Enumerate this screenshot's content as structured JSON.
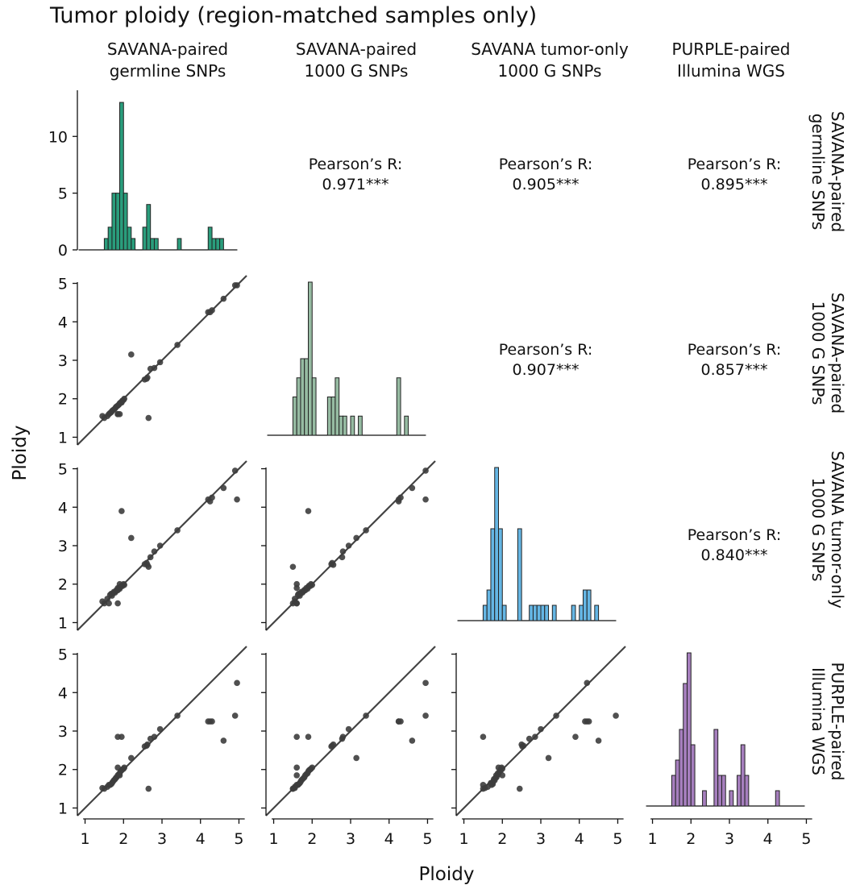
{
  "chart_data": {
    "type": "pairplot",
    "title": "Tumor ploidy (region-matched samples only)",
    "xlabel": "Ploidy",
    "ylabel": "Ploidy",
    "variables": [
      {
        "name": "SAVANA-paired germline SNPs",
        "col_label": [
          "SAVANA-paired",
          "germline SNPs"
        ],
        "row_label": [
          "SAVANA-paired",
          "germline SNPs"
        ],
        "color": "#2a9d7c"
      },
      {
        "name": "SAVANA-paired 1000 G SNPs",
        "col_label": [
          "SAVANA-paired",
          "1000 G SNPs"
        ],
        "row_label": [
          "SAVANA-paired",
          "1000 G SNPs"
        ],
        "color": "#96bba2"
      },
      {
        "name": "SAVANA tumor-only 1000 G SNPs",
        "col_label": [
          "SAVANA tumor-only",
          "1000 G SNPs"
        ],
        "row_label": [
          "SAVANA tumor-only",
          "1000 G SNPs"
        ],
        "color": "#65b6e4"
      },
      {
        "name": "PURPLE-paired Illumina WGS",
        "col_label": [
          "PURPLE-paired",
          "Illumina WGS"
        ],
        "row_label": [
          "PURPLE-paired",
          "Illumina WGS"
        ],
        "color": "#a67fbe"
      }
    ],
    "axis_range": [
      0.8,
      5.2
    ],
    "ticks": [
      1,
      2,
      3,
      4,
      5
    ],
    "count_axis": {
      "range": [
        0,
        13.5
      ],
      "ticks": [
        0,
        5,
        10
      ]
    },
    "histograms": [
      {
        "bin_starts": [
          1.5,
          1.6,
          1.7,
          1.8,
          1.9,
          2.0,
          2.1,
          2.2,
          2.5,
          2.6,
          2.7,
          2.8,
          3.4,
          4.2,
          4.3,
          4.4,
          4.5
        ],
        "counts": [
          1,
          2,
          5,
          5,
          13,
          5,
          2,
          1,
          2,
          4,
          1,
          1,
          1,
          2,
          1,
          1,
          1
        ],
        "bin_width": 0.1
      },
      {
        "bin_starts": [
          1.5,
          1.6,
          1.7,
          1.8,
          1.9,
          2.0,
          2.4,
          2.5,
          2.6,
          2.7,
          2.8,
          3.0,
          3.2,
          4.2,
          4.4
        ],
        "counts": [
          2,
          3,
          4,
          4,
          8,
          3,
          2,
          2,
          3,
          1,
          1,
          1,
          1,
          3,
          1
        ],
        "bin_width": 0.1
      },
      {
        "bin_starts": [
          1.5,
          1.6,
          1.7,
          1.8,
          1.9,
          2.0,
          2.4,
          2.7,
          2.8,
          2.9,
          3.0,
          3.1,
          3.3,
          3.8,
          4.0,
          4.1,
          4.2,
          4.4
        ],
        "counts": [
          1,
          2,
          6,
          10,
          6,
          1,
          6,
          1,
          1,
          1,
          1,
          1,
          1,
          1,
          1,
          2,
          2,
          1
        ],
        "bin_width": 0.1
      },
      {
        "bin_starts": [
          1.5,
          1.6,
          1.7,
          1.8,
          1.9,
          2.0,
          2.3,
          2.6,
          2.7,
          2.8,
          3.0,
          3.2,
          3.3,
          3.4,
          4.2
        ],
        "counts": [
          2,
          3,
          5,
          8,
          10,
          4,
          1,
          5,
          2,
          2,
          1,
          2,
          4,
          2,
          1
        ],
        "bin_width": 0.1
      }
    ],
    "correlations": [
      {
        "row": 0,
        "col": 1,
        "label": "Pearson’s R:",
        "value": "0.971***"
      },
      {
        "row": 0,
        "col": 2,
        "label": "Pearson’s R:",
        "value": "0.905***"
      },
      {
        "row": 0,
        "col": 3,
        "label": "Pearson’s R:",
        "value": "0.895***"
      },
      {
        "row": 1,
        "col": 2,
        "label": "Pearson’s R:",
        "value": "0.907***"
      },
      {
        "row": 1,
        "col": 3,
        "label": "Pearson’s R:",
        "value": "0.857***"
      },
      {
        "row": 2,
        "col": 3,
        "label": "Pearson’s R:",
        "value": "0.840***"
      }
    ],
    "samples": [
      [
        1.5,
        1.5,
        1.5,
        1.5
      ],
      [
        1.58,
        1.55,
        1.62,
        1.55
      ],
      [
        1.62,
        1.6,
        1.5,
        1.6
      ],
      [
        1.65,
        1.63,
        1.72,
        1.6
      ],
      [
        1.68,
        1.65,
        1.75,
        1.62
      ],
      [
        1.7,
        1.68,
        1.7,
        1.65
      ],
      [
        1.72,
        1.7,
        1.76,
        1.68
      ],
      [
        1.75,
        1.72,
        1.8,
        1.72
      ],
      [
        1.78,
        1.75,
        1.78,
        1.75
      ],
      [
        1.8,
        1.78,
        1.82,
        1.78
      ],
      [
        1.82,
        1.8,
        1.85,
        1.8
      ],
      [
        1.85,
        1.82,
        1.84,
        1.85
      ],
      [
        1.88,
        1.85,
        1.9,
        1.88
      ],
      [
        1.9,
        1.88,
        1.88,
        1.9
      ],
      [
        1.92,
        1.9,
        1.93,
        1.95
      ],
      [
        1.95,
        1.92,
        1.96,
        1.98
      ],
      [
        1.97,
        1.95,
        1.95,
        2.0
      ],
      [
        2.0,
        1.97,
        2.0,
        2.02
      ],
      [
        2.02,
        2.0,
        1.98,
        2.05
      ],
      [
        1.85,
        1.6,
        1.9,
        2.05
      ],
      [
        1.45,
        1.55,
        1.55,
        1.52
      ],
      [
        2.2,
        3.15,
        3.2,
        2.3
      ],
      [
        1.9,
        1.6,
        2.0,
        1.85
      ],
      [
        1.85,
        1.6,
        1.5,
        2.85
      ],
      [
        1.95,
        1.9,
        3.9,
        2.85
      ],
      [
        2.6,
        2.52,
        2.55,
        2.62
      ],
      [
        2.55,
        2.5,
        2.52,
        2.6
      ],
      [
        2.62,
        2.55,
        2.5,
        2.65
      ],
      [
        2.7,
        2.78,
        2.7,
        2.8
      ],
      [
        2.8,
        2.8,
        2.85,
        2.85
      ],
      [
        2.95,
        2.95,
        3.0,
        3.05
      ],
      [
        3.4,
        3.4,
        3.4,
        3.4
      ],
      [
        2.65,
        1.5,
        2.45,
        1.5
      ],
      [
        4.2,
        4.25,
        4.2,
        3.25
      ],
      [
        4.25,
        4.25,
        4.15,
        3.25
      ],
      [
        4.3,
        4.3,
        4.25,
        3.25
      ],
      [
        4.6,
        4.6,
        4.5,
        2.75
      ],
      [
        4.9,
        4.95,
        4.95,
        3.4
      ],
      [
        4.95,
        4.95,
        4.2,
        4.25
      ]
    ]
  }
}
